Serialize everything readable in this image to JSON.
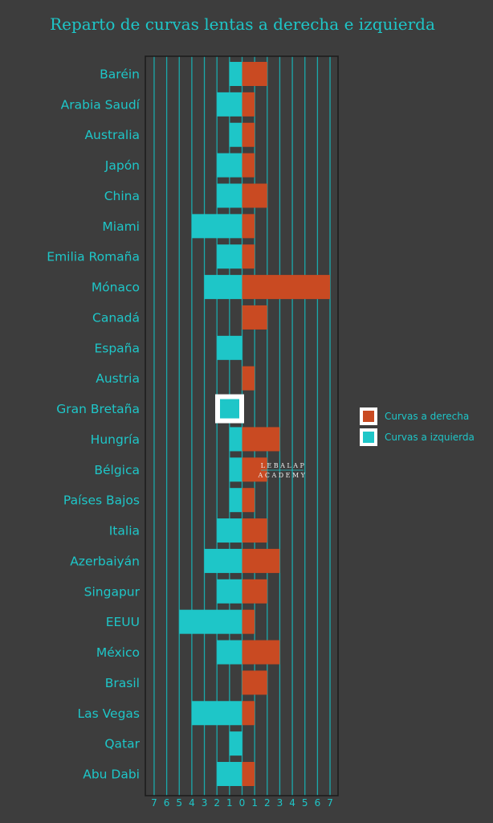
{
  "chart_data": {
    "type": "bar",
    "orientation": "horizontal-diverging",
    "title": "Reparto de curvas lentas a derecha e izquierda",
    "categories": [
      "Baréin",
      "Arabia Saudí",
      "Australia",
      "Japón",
      "China",
      "Miami",
      "Emilia Romaña",
      "Mónaco",
      "Canadá",
      "España",
      "Austria",
      "Gran Bretaña",
      "Hungría",
      "Bélgica",
      "Países Bajos",
      "Italia",
      "Azerbaiyán",
      "Singapur",
      "EEUU",
      "México",
      "Brasil",
      "Las Vegas",
      "Qatar",
      "Abu Dabi"
    ],
    "series": [
      {
        "name": "Curvas a derecha",
        "color": "#c94a22",
        "values": [
          2,
          1,
          1,
          1,
          2,
          1,
          1,
          7,
          2,
          0,
          1,
          0,
          3,
          2,
          1,
          2,
          3,
          2,
          1,
          3,
          2,
          1,
          0,
          1
        ]
      },
      {
        "name": "Curvas a izquierda",
        "color": "#1ec6c8",
        "values": [
          1,
          2,
          1,
          2,
          2,
          4,
          2,
          3,
          0,
          2,
          0,
          0,
          1,
          1,
          1,
          2,
          3,
          2,
          5,
          2,
          0,
          4,
          1,
          2
        ]
      }
    ],
    "xticks": [
      "7",
      "6",
      "5",
      "4",
      "3",
      "2",
      "1",
      "0",
      "1",
      "2",
      "3",
      "4",
      "5",
      "6",
      "7"
    ],
    "xlim": [
      -7,
      7
    ],
    "grid": true,
    "legend": "right"
  },
  "watermark": {
    "line1": "LEBALAP",
    "line2": "ACADEMY"
  }
}
